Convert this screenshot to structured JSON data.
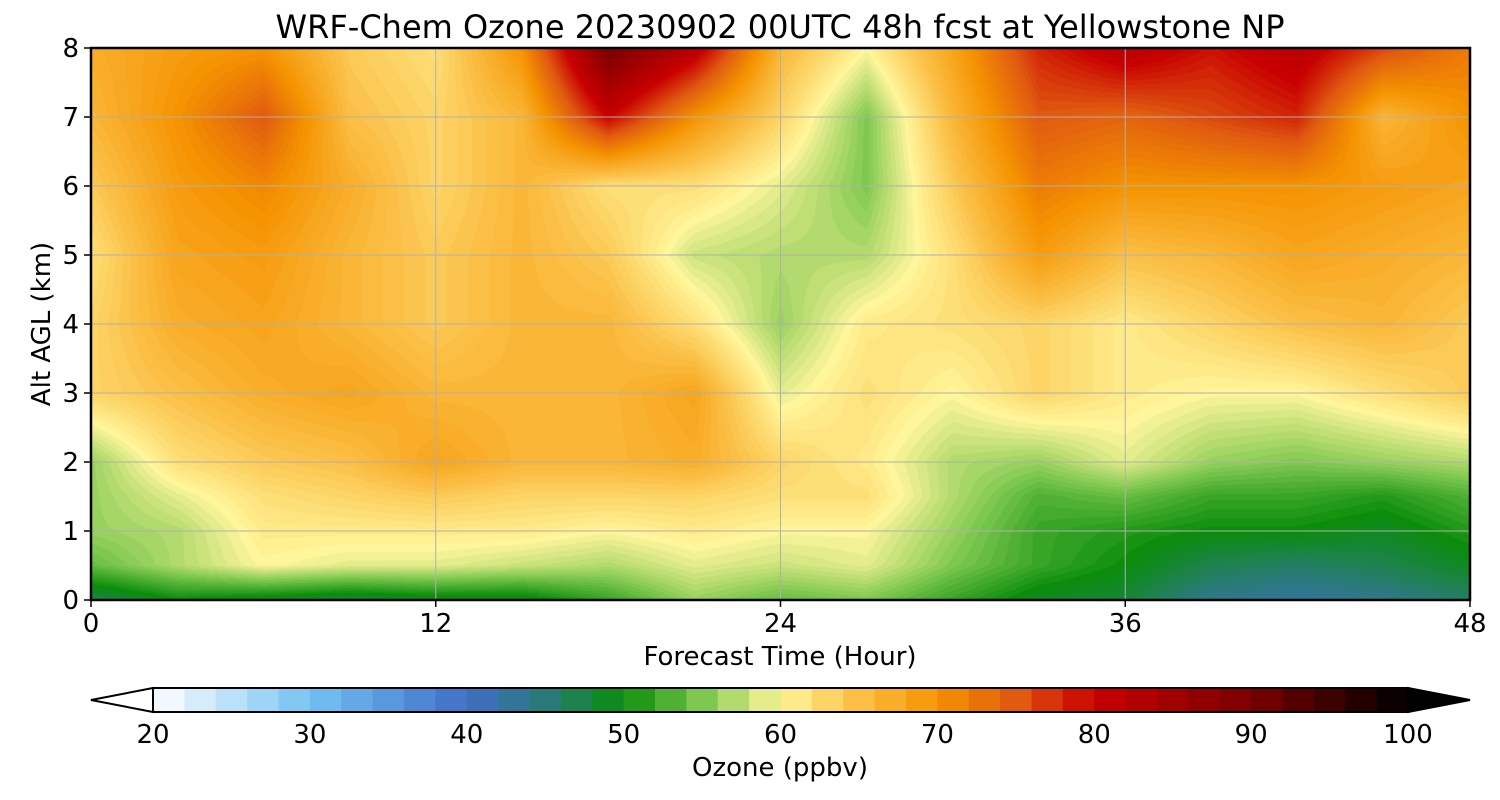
{
  "chart_data": {
    "type": "heatmap",
    "title": "WRF-Chem Ozone  20230902 00UTC 48h fcst at Yellowstone NP",
    "xlabel": "Forecast Time (Hour)",
    "ylabel": "Alt AGL (km)",
    "xlim": [
      0,
      48
    ],
    "ylim": [
      0,
      8
    ],
    "xticks": [
      0,
      12,
      24,
      36,
      48
    ],
    "yticks": [
      0,
      1,
      2,
      3,
      4,
      5,
      6,
      7,
      8
    ],
    "grid": true,
    "colorbar": {
      "label": "Ozone  (ppbv)",
      "range": [
        20,
        100
      ],
      "ticks": [
        20,
        30,
        40,
        50,
        60,
        70,
        80,
        90,
        100
      ],
      "extend": "both",
      "colors": [
        {
          "value": 20,
          "color": "#ffffff"
        },
        {
          "value": 30,
          "color": "#74c2f2"
        },
        {
          "value": 40,
          "color": "#3f6ec7"
        },
        {
          "value": 45,
          "color": "#2a7a7a"
        },
        {
          "value": 50,
          "color": "#0b8d0b"
        },
        {
          "value": 55,
          "color": "#7ec850"
        },
        {
          "value": 60,
          "color": "#fff59a"
        },
        {
          "value": 65,
          "color": "#fbbf45"
        },
        {
          "value": 70,
          "color": "#f59300"
        },
        {
          "value": 75,
          "color": "#e05a10"
        },
        {
          "value": 80,
          "color": "#c80000"
        },
        {
          "value": 90,
          "color": "#7a0000"
        },
        {
          "value": 100,
          "color": "#000000"
        }
      ]
    },
    "x": [
      0,
      3,
      6,
      9,
      12,
      15,
      18,
      21,
      24,
      27,
      30,
      33,
      36,
      39,
      42,
      45,
      48
    ],
    "y": [
      0,
      0.5,
      1,
      1.5,
      2,
      3,
      4,
      5,
      6,
      7,
      8
    ],
    "z": [
      [
        47,
        50,
        49,
        48,
        49,
        49,
        52,
        56,
        54,
        55,
        52,
        49,
        48,
        44,
        43,
        44,
        46
      ],
      [
        54,
        57,
        60,
        59,
        59,
        58,
        57,
        59,
        58,
        59,
        55,
        52,
        50,
        47,
        46,
        47,
        49
      ],
      [
        56,
        57,
        61,
        61,
        61,
        61,
        60,
        61,
        60,
        60,
        56,
        52,
        51,
        50,
        50,
        49,
        51
      ],
      [
        56,
        59,
        62,
        63,
        64,
        63,
        63,
        63,
        62,
        62,
        57,
        53,
        54,
        52,
        52,
        51,
        53
      ],
      [
        56,
        62,
        64,
        65,
        68,
        66,
        66,
        67,
        63,
        61,
        57,
        56,
        59,
        56,
        55,
        56,
        57
      ],
      [
        63,
        65,
        67,
        68,
        66,
        66,
        66,
        68,
        59,
        62,
        60,
        63,
        61,
        60,
        60,
        62,
        64
      ],
      [
        63,
        67,
        68,
        66,
        64,
        66,
        66,
        62,
        56,
        61,
        62,
        63,
        61,
        63,
        65,
        66,
        64
      ],
      [
        62,
        68,
        69,
        66,
        64,
        66,
        64,
        58,
        57,
        57,
        62,
        69,
        65,
        66,
        68,
        67,
        66
      ],
      [
        64,
        69,
        71,
        67,
        63,
        66,
        62,
        62,
        59,
        55,
        64,
        72,
        70,
        70,
        70,
        69,
        68
      ],
      [
        66,
        70,
        75,
        65,
        63,
        66,
        80,
        70,
        63,
        55,
        66,
        75,
        74,
        76,
        78,
        66,
        70
      ],
      [
        67,
        69,
        70,
        64,
        62,
        70,
        90,
        82,
        66,
        60,
        68,
        78,
        82,
        79,
        82,
        76,
        72
      ]
    ]
  }
}
